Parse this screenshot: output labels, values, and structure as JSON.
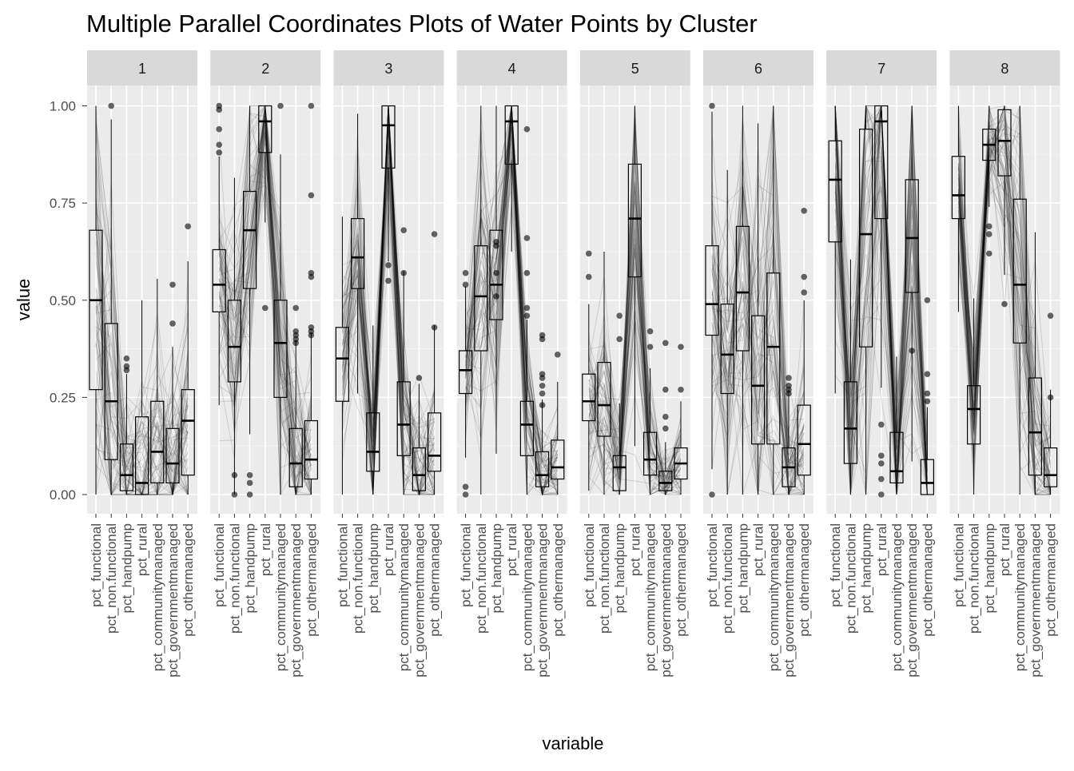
{
  "chart_data": {
    "type": "parallel-coordinates-boxplot",
    "title": "Multiple Parallel Coordinates Plots of Water Points by Cluster",
    "xlabel": "variable",
    "ylabel": "value",
    "ylim": [
      0,
      1
    ],
    "yticks": [
      "0.00",
      "0.25",
      "0.50",
      "0.75",
      "1.00"
    ],
    "ytick_values": [
      0,
      0.25,
      0.5,
      0.75,
      1.0
    ],
    "variables": [
      "pct_functional",
      "pct_non.functional",
      "pct_handpump",
      "pct_rural",
      "pct_communitymanaged",
      "pct_governmentmanaged",
      "pct_othermanaged"
    ],
    "panels": [
      {
        "label": "1",
        "boxes": [
          [
            0.27,
            0.5,
            0.68
          ],
          [
            0.09,
            0.24,
            0.44
          ],
          [
            0.01,
            0.05,
            0.13
          ],
          [
            0.0,
            0.03,
            0.2
          ],
          [
            0.03,
            0.11,
            0.24
          ],
          [
            0.03,
            0.08,
            0.17
          ],
          [
            0.05,
            0.19,
            0.27
          ]
        ],
        "outliers": [
          [],
          [
            1.0
          ],
          [
            0.35,
            0.33,
            0.32
          ],
          [],
          [],
          [
            0.54,
            0.44
          ],
          [
            0.69
          ]
        ]
      },
      {
        "label": "2",
        "boxes": [
          [
            0.47,
            0.54,
            0.63
          ],
          [
            0.29,
            0.38,
            0.5
          ],
          [
            0.53,
            0.68,
            0.78
          ],
          [
            0.88,
            0.96,
            1.0
          ],
          [
            0.25,
            0.39,
            0.5
          ],
          [
            0.02,
            0.08,
            0.17
          ],
          [
            0.04,
            0.09,
            0.19
          ]
        ],
        "outliers": [
          [
            1.0,
            0.99,
            0.94,
            0.9,
            0.88
          ],
          [
            0.05,
            0.0
          ],
          [
            0.05,
            0.03,
            0.0
          ],
          [
            0.48
          ],
          [
            1.0
          ],
          [
            0.48,
            0.42,
            0.41,
            0.4,
            0.39
          ],
          [
            1.0,
            0.77,
            0.57,
            0.56,
            0.43,
            0.42,
            0.41
          ]
        ]
      },
      {
        "label": "3",
        "boxes": [
          [
            0.24,
            0.35,
            0.43
          ],
          [
            0.53,
            0.61,
            0.71
          ],
          [
            0.06,
            0.11,
            0.21
          ],
          [
            0.84,
            0.95,
            1.0
          ],
          [
            0.1,
            0.18,
            0.29
          ],
          [
            0.01,
            0.05,
            0.12
          ],
          [
            0.06,
            0.1,
            0.21
          ]
        ],
        "outliers": [
          [],
          [],
          [],
          [
            0.59,
            0.55
          ],
          [
            0.68,
            0.57
          ],
          [
            0.3
          ],
          [
            0.67,
            0.43
          ]
        ]
      },
      {
        "label": "4",
        "boxes": [
          [
            0.26,
            0.32,
            0.37
          ],
          [
            0.37,
            0.51,
            0.64
          ],
          [
            0.45,
            0.54,
            0.68
          ],
          [
            0.85,
            0.96,
            1.0
          ],
          [
            0.1,
            0.18,
            0.24
          ],
          [
            0.02,
            0.05,
            0.11
          ],
          [
            0.04,
            0.07,
            0.14
          ]
        ],
        "outliers": [
          [
            0.57,
            0.54,
            0.02,
            0.0
          ],
          [],
          [
            0.65,
            0.64,
            0.57,
            0.51
          ],
          [],
          [
            0.94,
            0.66,
            0.57,
            0.48,
            0.46
          ],
          [
            0.41,
            0.4,
            0.31,
            0.3,
            0.28,
            0.26,
            0.23
          ],
          [
            0.36
          ]
        ]
      },
      {
        "label": "5",
        "boxes": [
          [
            0.19,
            0.24,
            0.31
          ],
          [
            0.15,
            0.23,
            0.34
          ],
          [
            0.01,
            0.07,
            0.1
          ],
          [
            0.56,
            0.71,
            0.85
          ],
          [
            0.05,
            0.09,
            0.16
          ],
          [
            0.01,
            0.03,
            0.06
          ],
          [
            0.04,
            0.08,
            0.12
          ]
        ],
        "outliers": [
          [
            0.62,
            0.56
          ],
          [],
          [
            0.46,
            0.4
          ],
          [],
          [
            0.42,
            0.38
          ],
          [
            0.39,
            0.27,
            0.2,
            0.17
          ],
          [
            0.38,
            0.27
          ]
        ]
      },
      {
        "label": "6",
        "boxes": [
          [
            0.41,
            0.49,
            0.64
          ],
          [
            0.26,
            0.36,
            0.49
          ],
          [
            0.37,
            0.52,
            0.69
          ],
          [
            0.13,
            0.28,
            0.46
          ],
          [
            0.13,
            0.38,
            0.57
          ],
          [
            0.02,
            0.07,
            0.12
          ],
          [
            0.05,
            0.13,
            0.23
          ]
        ],
        "outliers": [
          [
            1.0,
            0.0
          ],
          [],
          [],
          [],
          [],
          [
            0.3,
            0.28,
            0.27,
            0.26
          ],
          [
            0.73,
            0.56,
            0.52
          ]
        ]
      },
      {
        "label": "7",
        "boxes": [
          [
            0.65,
            0.81,
            0.91
          ],
          [
            0.08,
            0.17,
            0.29
          ],
          [
            0.38,
            0.67,
            0.94
          ],
          [
            0.71,
            0.96,
            1.0
          ],
          [
            0.03,
            0.06,
            0.16
          ],
          [
            0.52,
            0.66,
            0.81
          ],
          [
            0.0,
            0.03,
            0.09
          ]
        ],
        "outliers": [
          [],
          [],
          [],
          [
            0.18,
            0.1,
            0.08,
            0.04,
            0.0
          ],
          [],
          [
            0.37
          ],
          [
            0.5,
            0.31,
            0.26,
            0.24
          ]
        ]
      },
      {
        "label": "8",
        "boxes": [
          [
            0.71,
            0.77,
            0.87
          ],
          [
            0.13,
            0.22,
            0.28
          ],
          [
            0.86,
            0.9,
            0.94
          ],
          [
            0.82,
            0.91,
            0.99
          ],
          [
            0.39,
            0.54,
            0.76
          ],
          [
            0.05,
            0.16,
            0.3
          ],
          [
            0.02,
            0.05,
            0.12
          ]
        ],
        "outliers": [
          [],
          [],
          [
            0.69,
            0.67,
            0.62
          ],
          [
            0.49
          ],
          [],
          [],
          [
            0.46,
            0.25
          ]
        ]
      }
    ],
    "grid": true,
    "legend": "none"
  }
}
